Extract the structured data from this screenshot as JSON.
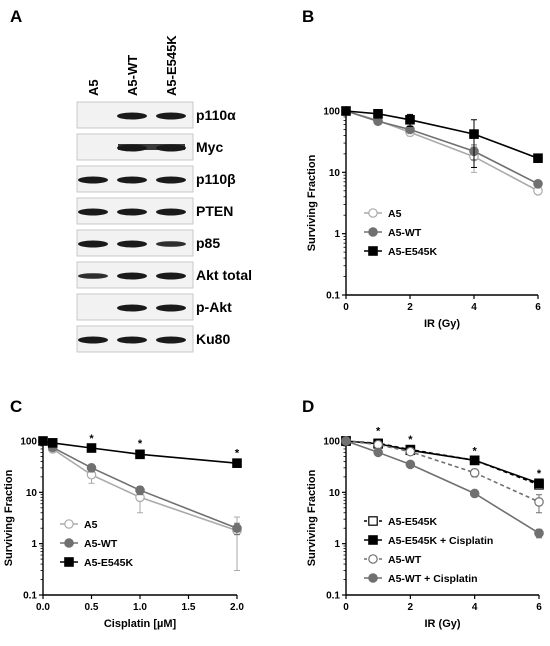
{
  "panels": {
    "a": "A",
    "b": "B",
    "c": "C",
    "d": "D"
  },
  "blot": {
    "lanes": [
      "A5",
      "A5-WT",
      "A5-E545K"
    ],
    "rows": [
      {
        "label": "p110α",
        "intensity": [
          0,
          1,
          1
        ]
      },
      {
        "label": "Myc",
        "intensity": [
          0,
          1,
          1
        ]
      },
      {
        "label": "p110β",
        "intensity": [
          1,
          1,
          1
        ]
      },
      {
        "label": "PTEN",
        "intensity": [
          1,
          1,
          1
        ]
      },
      {
        "label": "p85",
        "intensity": [
          1,
          1,
          0.8
        ]
      },
      {
        "label": "Akt total",
        "intensity": [
          0.8,
          1,
          1
        ]
      },
      {
        "label": "p-Akt",
        "intensity": [
          0,
          1,
          1
        ]
      },
      {
        "label": "Ku80",
        "intensity": [
          1,
          1,
          1
        ]
      }
    ]
  },
  "colors": {
    "a5": "#aaaaaa",
    "a5wt": "#707070",
    "e545k": "#000000"
  },
  "chart_data": [
    {
      "type": "line",
      "id": "b",
      "xlabel": "IR (Gy)",
      "ylabel": "Surviving Fraction",
      "xlim": [
        0,
        6
      ],
      "ylim": [
        0.1,
        100
      ],
      "yscale": "log",
      "xticks": [
        0,
        2,
        4,
        6
      ],
      "yticks": [
        0.1,
        1,
        10,
        100
      ],
      "ytick_labels": [
        "0.1",
        "1",
        "10",
        "100"
      ],
      "legend_position": "bottom-left",
      "series": [
        {
          "name": "A5",
          "color": "#aaaaaa",
          "marker": "circle-open",
          "dash": false,
          "x": [
            0,
            1,
            2,
            4,
            6
          ],
          "y": [
            100,
            70,
            45,
            18,
            5
          ],
          "err": [
            0,
            5,
            6,
            8,
            0.6
          ]
        },
        {
          "name": "A5-WT",
          "color": "#707070",
          "marker": "circle",
          "dash": false,
          "x": [
            0,
            1,
            2,
            4,
            6
          ],
          "y": [
            100,
            68,
            50,
            22,
            6.5
          ],
          "err": [
            0,
            5,
            6,
            6,
            0.6
          ]
        },
        {
          "name": "A5-E545K",
          "color": "#000000",
          "marker": "square",
          "dash": false,
          "x": [
            0,
            1,
            2,
            4,
            6
          ],
          "y": [
            100,
            90,
            72,
            42,
            17
          ],
          "err": [
            0,
            5,
            16,
            30,
            1.5
          ]
        }
      ],
      "stars": []
    },
    {
      "type": "line",
      "id": "c",
      "xlabel": "Cisplatin [µM]",
      "ylabel": "Surviving Fraction",
      "xlim": [
        0,
        2
      ],
      "ylim": [
        0.1,
        100
      ],
      "yscale": "log",
      "xticks": [
        0,
        0.5,
        1,
        1.5,
        2
      ],
      "xtick_labels": [
        "0.0",
        "0.5",
        "1.0",
        "1.5",
        "2.0"
      ],
      "yticks": [
        0.1,
        1,
        10,
        100
      ],
      "ytick_labels": [
        "0.1",
        "1",
        "10",
        "100"
      ],
      "legend_position": "bottom-left",
      "series": [
        {
          "name": "A5",
          "color": "#aaaaaa",
          "marker": "circle-open",
          "dash": false,
          "x": [
            0,
            0.1,
            0.5,
            1,
            2
          ],
          "y": [
            100,
            70,
            22,
            8,
            1.8
          ],
          "err": [
            0,
            8,
            7,
            4,
            1.5
          ]
        },
        {
          "name": "A5-WT",
          "color": "#707070",
          "marker": "circle",
          "dash": false,
          "x": [
            0,
            0.1,
            0.5,
            1,
            2
          ],
          "y": [
            100,
            75,
            30,
            11,
            2
          ],
          "err": [
            0,
            5,
            5,
            2,
            0.5
          ]
        },
        {
          "name": "A5-E545K",
          "color": "#000000",
          "marker": "square",
          "dash": false,
          "x": [
            0,
            0.1,
            0.5,
            1,
            2
          ],
          "y": [
            100,
            92,
            73,
            55,
            37
          ],
          "err": [
            0,
            4,
            5,
            4,
            3
          ]
        }
      ],
      "stars": [
        {
          "x": 0.5,
          "y": 115,
          "label": "*"
        },
        {
          "x": 1,
          "y": 92,
          "label": "*"
        },
        {
          "x": 2,
          "y": 60,
          "label": "*"
        }
      ]
    },
    {
      "type": "line",
      "id": "d",
      "xlabel": "IR (Gy)",
      "ylabel": "Surviving Fraction",
      "xlim": [
        0,
        6
      ],
      "ylim": [
        0.1,
        100
      ],
      "yscale": "log",
      "xticks": [
        0,
        2,
        4,
        6
      ],
      "yticks": [
        0.1,
        1,
        10,
        100
      ],
      "ytick_labels": [
        "0.1",
        "1",
        "10",
        "100"
      ],
      "legend_position": "bottom-left",
      "series": [
        {
          "name": "A5-E545K",
          "color": "#000000",
          "marker": "square-open",
          "dash": true,
          "x": [
            0,
            1,
            2,
            4,
            6
          ],
          "y": [
            100,
            90,
            68,
            42,
            14
          ],
          "err": [
            0,
            5,
            5,
            4,
            1.5
          ]
        },
        {
          "name": "A5-E545K + Cisplatin",
          "color": "#000000",
          "marker": "square",
          "dash": false,
          "x": [
            0,
            1,
            2,
            4,
            6
          ],
          "y": [
            100,
            88,
            66,
            42,
            15
          ],
          "err": [
            0,
            5,
            5,
            4,
            1.5
          ]
        },
        {
          "name": "A5-WT",
          "color": "#707070",
          "marker": "circle-open",
          "dash": true,
          "x": [
            0,
            1,
            2,
            4,
            6
          ],
          "y": [
            100,
            85,
            62,
            24,
            6.5
          ],
          "err": [
            0,
            5,
            5,
            4,
            2.5
          ]
        },
        {
          "name": "A5-WT + Cisplatin",
          "color": "#707070",
          "marker": "circle",
          "dash": false,
          "x": [
            0,
            1,
            2,
            4,
            6
          ],
          "y": [
            100,
            60,
            35,
            9.5,
            1.6
          ],
          "err": [
            0,
            4,
            3,
            0.8,
            0.3
          ]
        }
      ],
      "stars": [
        {
          "x": 1,
          "y": 160,
          "label": "*"
        },
        {
          "x": 2,
          "y": 110,
          "label": "*"
        },
        {
          "x": 4,
          "y": 65,
          "label": "*"
        },
        {
          "x": 6,
          "y": 24,
          "label": "*"
        }
      ]
    }
  ]
}
